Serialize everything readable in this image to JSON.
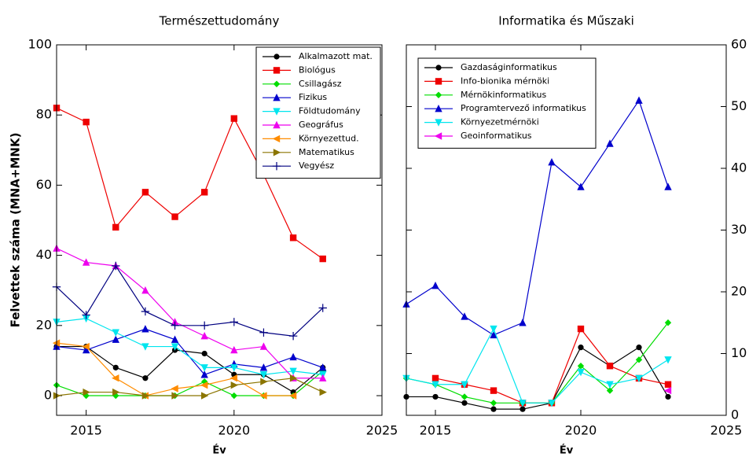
{
  "chart_data": [
    {
      "type": "line",
      "title": "Természettudomány",
      "xlabel": "Év",
      "ylabel": "Felvettek száma (MNA+MNK)",
      "x": [
        2014,
        2015,
        2016,
        2017,
        2018,
        2019,
        2020,
        2021,
        2022,
        2023
      ],
      "xlim": [
        2014,
        2025
      ],
      "xticks": [
        2015,
        2020,
        2025
      ],
      "ylim": [
        -5.6,
        100
      ],
      "yticks": [
        0,
        20,
        40,
        60,
        80,
        100
      ],
      "axis_side": "left",
      "legend": "upper right",
      "series": [
        {
          "name": "Alkalmazott mat.",
          "color": "#000000",
          "marker": "circle",
          "values": [
            14,
            14,
            8,
            5,
            13,
            12,
            6,
            6,
            1,
            8
          ]
        },
        {
          "name": "Biológus",
          "color": "#ee0000",
          "marker": "square",
          "values": [
            82,
            78,
            48,
            58,
            51,
            58,
            79,
            63,
            45,
            39
          ]
        },
        {
          "name": "Csillagász",
          "color": "#00dd00",
          "marker": "diamond",
          "values": [
            3,
            0,
            0,
            0,
            0,
            4,
            0,
            0,
            0,
            7
          ]
        },
        {
          "name": "Fizikus",
          "color": "#0000cc",
          "marker": "triangle-up",
          "values": [
            14,
            13,
            16,
            19,
            16,
            6,
            9,
            8,
            11,
            8
          ]
        },
        {
          "name": "Földtudomány",
          "color": "#00e5ee",
          "marker": "triangle-down",
          "values": [
            21,
            22,
            18,
            14,
            14,
            8,
            8,
            6,
            7,
            6
          ]
        },
        {
          "name": "Geográfus",
          "color": "#ee00ee",
          "marker": "triangle-up",
          "values": [
            42,
            38,
            37,
            30,
            21,
            17,
            13,
            14,
            5,
            5
          ]
        },
        {
          "name": "Környezettud.",
          "color": "#ff8c00",
          "marker": "triangle-left",
          "values": [
            15,
            14,
            5,
            0,
            2,
            3,
            5,
            0,
            0,
            null
          ]
        },
        {
          "name": "Matematikus",
          "color": "#8b7500",
          "marker": "triangle-right",
          "values": [
            0,
            1,
            1,
            0,
            0,
            0,
            3,
            4,
            5,
            1
          ]
        },
        {
          "name": "Vegyész",
          "color": "#000080",
          "marker": "plus",
          "values": [
            31,
            23,
            37,
            24,
            20,
            20,
            21,
            18,
            17,
            25
          ]
        }
      ]
    },
    {
      "type": "line",
      "title": "Informatika és Műszaki",
      "xlabel": "Év",
      "x": [
        2014,
        2015,
        2016,
        2017,
        2018,
        2019,
        2020,
        2021,
        2022,
        2023
      ],
      "xlim": [
        2014,
        2025
      ],
      "xticks": [
        2015,
        2020,
        2025
      ],
      "y2lim": [
        0,
        60
      ],
      "y2ticks": [
        0,
        10,
        20,
        30,
        40,
        50,
        60
      ],
      "axis_side": "right",
      "legend": "upper left",
      "series": [
        {
          "name": "Gazdaságinformatikus",
          "color": "#000000",
          "marker": "circle",
          "axis": "y2",
          "values": [
            3,
            3,
            2,
            1,
            1,
            2,
            11,
            8,
            11,
            3
          ]
        },
        {
          "name": "Info-bionika mérnöki",
          "color": "#ee0000",
          "marker": "square",
          "axis": "y2",
          "values": [
            null,
            6,
            5,
            4,
            2,
            2,
            14,
            8,
            6,
            5
          ]
        },
        {
          "name": "Mérnökinformatikus",
          "color": "#00dd00",
          "marker": "diamond",
          "axis": "y2",
          "values": [
            6,
            5,
            3,
            2,
            2,
            2,
            8,
            4,
            9,
            15
          ]
        },
        {
          "name": "Programtervező informatikus",
          "color": "#0000cc",
          "marker": "triangle-up",
          "axis": "y2",
          "values": [
            18,
            21,
            16,
            13,
            15,
            41,
            37,
            44,
            51,
            37
          ]
        },
        {
          "name": "Környezetmérnöki",
          "color": "#00e5ee",
          "marker": "triangle-down",
          "axis": "y2",
          "values": [
            6,
            5,
            5,
            14,
            2,
            2,
            7,
            5,
            6,
            9
          ]
        },
        {
          "name": "Geoinformatikus",
          "color": "#ee00ee",
          "marker": "triangle-left",
          "axis": "y2",
          "values": [
            null,
            null,
            null,
            null,
            null,
            null,
            null,
            null,
            null,
            4
          ]
        }
      ]
    }
  ]
}
